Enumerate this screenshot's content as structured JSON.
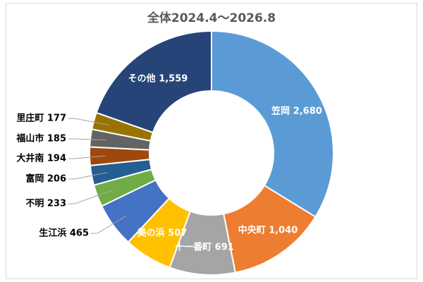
{
  "chart_data": {
    "type": "pie",
    "title": "全体2024.4～2026.8",
    "donut": true,
    "slices": [
      {
        "label": "笠岡",
        "value": 2680,
        "value_label": "2,680",
        "color": "#5b9bd5",
        "label_inside": true
      },
      {
        "label": "中央町",
        "value": 1040,
        "value_label": "1,040",
        "color": "#ed7d31",
        "label_inside": true
      },
      {
        "label": "十一番町",
        "value": 691,
        "value_label": "691",
        "color": "#a5a5a5",
        "label_inside": true
      },
      {
        "label": "美の浜",
        "value": 507,
        "value_label": "507",
        "color": "#ffc000",
        "label_inside": true
      },
      {
        "label": "生江浜",
        "value": 465,
        "value_label": "465",
        "color": "#4472c4",
        "label_inside": false
      },
      {
        "label": "不明",
        "value": 233,
        "value_label": "233",
        "color": "#70ad47",
        "label_inside": false
      },
      {
        "label": "富岡",
        "value": 206,
        "value_label": "206",
        "color": "#255e91",
        "label_inside": false
      },
      {
        "label": "大井南",
        "value": 194,
        "value_label": "194",
        "color": "#9e480e",
        "label_inside": false
      },
      {
        "label": "福山市",
        "value": 185,
        "value_label": "185",
        "color": "#636363",
        "label_inside": false
      },
      {
        "label": "里庄町",
        "value": 177,
        "value_label": "177",
        "color": "#997300",
        "label_inside": false
      },
      {
        "label": "その他",
        "value": 1559,
        "value_label": "1,559",
        "color": "#264478",
        "label_inside": true
      }
    ]
  }
}
